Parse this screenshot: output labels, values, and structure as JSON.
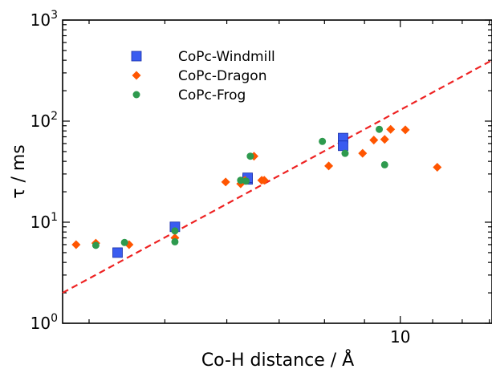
{
  "chart_data": {
    "type": "scatter",
    "xscale": "log",
    "yscale": "log",
    "xlim": [
      3.7,
      13.1
    ],
    "ylim": [
      1,
      1000
    ],
    "xlabel": "Co-H distance / Å",
    "ylabel": "τ / ms",
    "legend_position": "top-left",
    "x_tick_labels": [
      {
        "value": 10,
        "text": "10"
      }
    ],
    "y_tick_labels": [
      {
        "value": 1,
        "base": "10",
        "exp": "0"
      },
      {
        "value": 10,
        "base": "10",
        "exp": "1"
      },
      {
        "value": 100,
        "base": "10",
        "exp": "2"
      },
      {
        "value": 1000,
        "base": "10",
        "exp": "3"
      }
    ],
    "series": [
      {
        "name": "CoPc-Windmill",
        "marker": "square",
        "color": "#3a5cf0",
        "points": [
          [
            4.35,
            5.0
          ],
          [
            5.15,
            9.0
          ],
          [
            6.38,
            26.5
          ],
          [
            6.38,
            27.5
          ],
          [
            8.45,
            68
          ],
          [
            8.45,
            57
          ]
        ]
      },
      {
        "name": "CoPc-Dragon",
        "marker": "diamond",
        "color": "#ff5500",
        "points": [
          [
            3.85,
            6.0
          ],
          [
            4.08,
            6.2
          ],
          [
            4.5,
            6.0
          ],
          [
            5.15,
            7.0
          ],
          [
            5.98,
            25
          ],
          [
            6.25,
            24
          ],
          [
            6.33,
            26
          ],
          [
            6.5,
            45
          ],
          [
            6.65,
            26
          ],
          [
            6.7,
            26
          ],
          [
            8.1,
            36
          ],
          [
            8.95,
            48
          ],
          [
            9.25,
            65
          ],
          [
            9.55,
            66
          ],
          [
            9.72,
            83
          ],
          [
            10.15,
            82
          ],
          [
            11.15,
            35
          ]
        ]
      },
      {
        "name": "CoPc-Frog",
        "marker": "circle",
        "color": "#2e9a4e",
        "points": [
          [
            4.08,
            5.9
          ],
          [
            4.44,
            6.3
          ],
          [
            5.15,
            6.4
          ],
          [
            5.15,
            8.2
          ],
          [
            6.25,
            26
          ],
          [
            6.35,
            25.5
          ],
          [
            6.43,
            45
          ],
          [
            7.95,
            63
          ],
          [
            8.5,
            48
          ],
          [
            9.4,
            83
          ],
          [
            9.55,
            37
          ]
        ]
      },
      {
        "name": "",
        "type": "line",
        "style": "dashed",
        "color": "#ee2222",
        "points": [
          [
            3.7,
            2.0
          ],
          [
            13.1,
            400
          ]
        ]
      }
    ]
  }
}
